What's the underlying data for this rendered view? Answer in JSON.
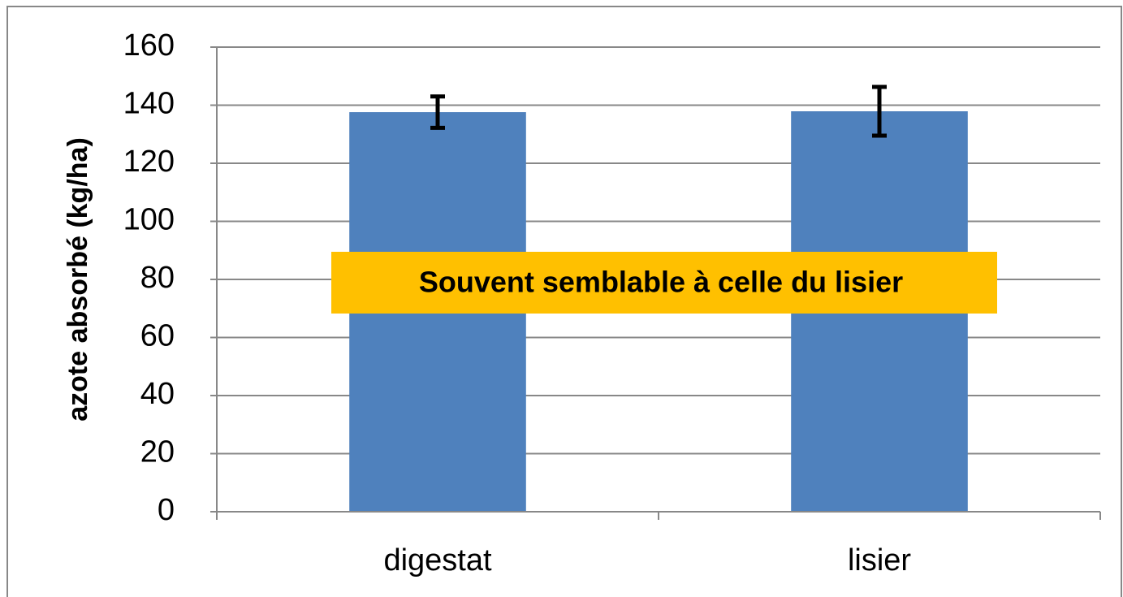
{
  "chart_data": {
    "type": "bar",
    "y_label": "azote absorbé (kg/ha)",
    "categories": [
      "digestat",
      "lisier"
    ],
    "values": [
      137.6,
      137.9
    ],
    "errors": [
      5.4,
      8.4
    ],
    "color": "#4f81bd",
    "ylim": [
      0,
      160
    ],
    "yticks": [
      0,
      20,
      40,
      60,
      80,
      100,
      120,
      140,
      160
    ],
    "grid": true,
    "annotation": "Souvent semblable à celle du lisier"
  }
}
